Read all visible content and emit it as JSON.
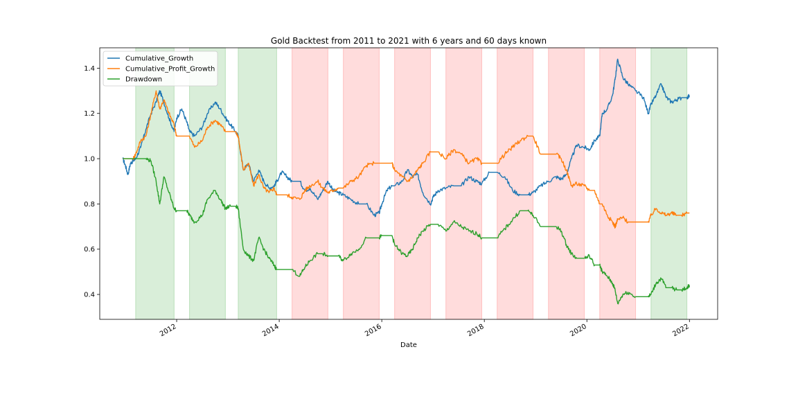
{
  "chart_data": {
    "type": "line",
    "title": "Gold Backtest from 2011 to 2021 with 6 years and 60 days known",
    "xlabel": "Date",
    "ylabel": "",
    "xlim": [
      2010.5,
      2022.55
    ],
    "ylim": [
      0.29,
      1.49
    ],
    "xticks": [
      2012,
      2014,
      2016,
      2018,
      2020,
      2022
    ],
    "xtick_labels": [
      "2012",
      "2014",
      "2016",
      "2018",
      "2020",
      "2022"
    ],
    "yticks": [
      0.4,
      0.6,
      0.8,
      1.0,
      1.2,
      1.4
    ],
    "ytick_labels": [
      "0.4",
      "0.6",
      "0.8",
      "1.0",
      "1.2",
      "1.4"
    ],
    "grid": false,
    "legend_position": "top-left",
    "periods": [
      {
        "start": 2011.2,
        "end": 2011.95,
        "color": "#2ca02c"
      },
      {
        "start": 2012.25,
        "end": 2012.95,
        "color": "#2ca02c"
      },
      {
        "start": 2013.2,
        "end": 2013.95,
        "color": "#2ca02c"
      },
      {
        "start": 2014.25,
        "end": 2014.95,
        "color": "#ff3b3b"
      },
      {
        "start": 2015.25,
        "end": 2015.95,
        "color": "#ff3b3b"
      },
      {
        "start": 2016.25,
        "end": 2016.95,
        "color": "#ff3b3b"
      },
      {
        "start": 2017.25,
        "end": 2017.95,
        "color": "#ff3b3b"
      },
      {
        "start": 2018.25,
        "end": 2018.95,
        "color": "#ff3b3b"
      },
      {
        "start": 2019.25,
        "end": 2019.95,
        "color": "#ff3b3b"
      },
      {
        "start": 2020.25,
        "end": 2020.95,
        "color": "#ff3b3b"
      },
      {
        "start": 2021.25,
        "end": 2021.95,
        "color": "#2ca02c"
      }
    ],
    "series": [
      {
        "name": "Cumulative_Growth",
        "color": "#1f77b4",
        "x": [
          2010.95,
          2011.0,
          2011.05,
          2011.1,
          2011.15,
          2011.2,
          2011.3,
          2011.4,
          2011.5,
          2011.6,
          2011.67,
          2011.75,
          2011.85,
          2011.95,
          2012.0,
          2012.1,
          2012.2,
          2012.25,
          2012.35,
          2012.5,
          2012.6,
          2012.75,
          2012.85,
          2012.95,
          2013.05,
          2013.15,
          2013.2,
          2013.3,
          2013.4,
          2013.5,
          2013.6,
          2013.7,
          2013.8,
          2013.9,
          2013.95,
          2014.05,
          2014.15,
          2014.25,
          2014.4,
          2014.5,
          2014.6,
          2014.75,
          2014.85,
          2014.95,
          2015.05,
          2015.15,
          2015.25,
          2015.4,
          2015.55,
          2015.7,
          2015.85,
          2015.95,
          2016.0,
          2016.1,
          2016.2,
          2016.25,
          2016.4,
          2016.5,
          2016.6,
          2016.7,
          2016.8,
          2016.95,
          2017.0,
          2017.1,
          2017.25,
          2017.4,
          2017.55,
          2017.7,
          2017.85,
          2017.95,
          2018.1,
          2018.25,
          2018.4,
          2018.55,
          2018.7,
          2018.85,
          2018.95,
          2019.1,
          2019.25,
          2019.4,
          2019.5,
          2019.6,
          2019.7,
          2019.8,
          2019.95,
          2020.05,
          2020.15,
          2020.25,
          2020.3,
          2020.4,
          2020.5,
          2020.55,
          2020.6,
          2020.7,
          2020.8,
          2020.95,
          2021.1,
          2021.2,
          2021.25,
          2021.35,
          2021.45,
          2021.55,
          2021.65,
          2021.75,
          2021.85,
          2021.95,
          2022.0
        ],
        "y": [
          1.0,
          0.97,
          0.93,
          0.98,
          0.99,
          1.0,
          1.05,
          1.13,
          1.2,
          1.25,
          1.3,
          1.25,
          1.18,
          1.12,
          1.18,
          1.22,
          1.16,
          1.12,
          1.1,
          1.14,
          1.2,
          1.25,
          1.22,
          1.18,
          1.15,
          1.12,
          1.1,
          0.95,
          0.98,
          0.9,
          0.95,
          0.9,
          0.87,
          0.88,
          0.9,
          0.94,
          0.92,
          0.9,
          0.9,
          0.86,
          0.87,
          0.82,
          0.86,
          0.9,
          0.86,
          0.85,
          0.84,
          0.82,
          0.8,
          0.8,
          0.75,
          0.76,
          0.8,
          0.86,
          0.88,
          0.88,
          0.9,
          0.95,
          0.92,
          0.93,
          0.85,
          0.8,
          0.83,
          0.86,
          0.87,
          0.88,
          0.88,
          0.92,
          0.9,
          0.89,
          0.94,
          0.94,
          0.92,
          0.86,
          0.84,
          0.84,
          0.85,
          0.88,
          0.9,
          0.92,
          0.91,
          0.93,
          1.0,
          1.06,
          1.05,
          1.04,
          1.08,
          1.1,
          1.2,
          1.22,
          1.28,
          1.35,
          1.44,
          1.36,
          1.33,
          1.3,
          1.27,
          1.2,
          1.24,
          1.28,
          1.33,
          1.27,
          1.25,
          1.26,
          1.27,
          1.27,
          1.28
        ]
      },
      {
        "name": "Cumulative_Profit_Growth",
        "color": "#ff7f0e",
        "x": [
          2010.95,
          2011.0,
          2011.05,
          2011.1,
          2011.15,
          2011.2,
          2011.3,
          2011.4,
          2011.5,
          2011.6,
          2011.67,
          2011.75,
          2011.85,
          2011.95,
          2012.0,
          2012.1,
          2012.2,
          2012.25,
          2012.35,
          2012.5,
          2012.6,
          2012.75,
          2012.85,
          2012.95,
          2013.05,
          2013.15,
          2013.2,
          2013.3,
          2013.4,
          2013.5,
          2013.6,
          2013.7,
          2013.8,
          2013.9,
          2013.95,
          2014.05,
          2014.15,
          2014.25,
          2014.4,
          2014.5,
          2014.6,
          2014.75,
          2014.85,
          2014.95,
          2015.05,
          2015.15,
          2015.25,
          2015.4,
          2015.55,
          2015.7,
          2015.85,
          2015.95,
          2016.0,
          2016.1,
          2016.2,
          2016.25,
          2016.4,
          2016.5,
          2016.6,
          2016.7,
          2016.8,
          2016.95,
          2017.0,
          2017.1,
          2017.25,
          2017.4,
          2017.55,
          2017.7,
          2017.85,
          2017.95,
          2018.1,
          2018.25,
          2018.4,
          2018.55,
          2018.7,
          2018.85,
          2018.95,
          2019.1,
          2019.25,
          2019.4,
          2019.5,
          2019.6,
          2019.7,
          2019.8,
          2019.95,
          2020.05,
          2020.15,
          2020.25,
          2020.3,
          2020.4,
          2020.5,
          2020.55,
          2020.6,
          2020.7,
          2020.8,
          2020.95,
          2021.1,
          2021.2,
          2021.25,
          2021.35,
          2021.45,
          2021.55,
          2021.65,
          2021.75,
          2021.85,
          2021.95,
          2022.0
        ],
        "y": [
          1.0,
          1.0,
          1.0,
          1.0,
          1.0,
          1.02,
          1.08,
          1.1,
          1.2,
          1.3,
          1.22,
          1.26,
          1.2,
          1.15,
          1.1,
          1.1,
          1.1,
          1.1,
          1.05,
          1.08,
          1.14,
          1.17,
          1.15,
          1.12,
          1.12,
          1.12,
          1.1,
          0.95,
          0.98,
          0.88,
          0.93,
          0.87,
          0.85,
          0.87,
          0.84,
          0.84,
          0.84,
          0.83,
          0.82,
          0.86,
          0.88,
          0.9,
          0.87,
          0.85,
          0.86,
          0.87,
          0.87,
          0.9,
          0.92,
          0.97,
          0.98,
          0.98,
          0.98,
          0.98,
          0.98,
          0.95,
          0.92,
          0.9,
          0.92,
          0.95,
          0.98,
          1.03,
          1.03,
          1.03,
          1.0,
          1.04,
          1.02,
          0.98,
          1.0,
          0.98,
          0.98,
          0.98,
          1.02,
          1.05,
          1.08,
          1.1,
          1.1,
          1.02,
          1.02,
          1.02,
          1.0,
          0.95,
          0.88,
          0.89,
          0.88,
          0.86,
          0.86,
          0.8,
          0.8,
          0.75,
          0.72,
          0.7,
          0.73,
          0.74,
          0.72,
          0.72,
          0.72,
          0.72,
          0.75,
          0.78,
          0.76,
          0.75,
          0.76,
          0.75,
          0.75,
          0.76,
          0.76
        ]
      },
      {
        "name": "Drawdown",
        "color": "#2ca02c",
        "x": [
          2010.95,
          2011.0,
          2011.05,
          2011.1,
          2011.15,
          2011.2,
          2011.3,
          2011.4,
          2011.5,
          2011.6,
          2011.67,
          2011.75,
          2011.85,
          2011.95,
          2012.0,
          2012.1,
          2012.2,
          2012.25,
          2012.35,
          2012.5,
          2012.6,
          2012.75,
          2012.85,
          2012.95,
          2013.05,
          2013.15,
          2013.2,
          2013.3,
          2013.4,
          2013.5,
          2013.6,
          2013.7,
          2013.8,
          2013.9,
          2013.95,
          2014.05,
          2014.15,
          2014.25,
          2014.4,
          2014.5,
          2014.6,
          2014.75,
          2014.85,
          2014.95,
          2015.05,
          2015.15,
          2015.25,
          2015.4,
          2015.55,
          2015.7,
          2015.85,
          2015.95,
          2016.0,
          2016.1,
          2016.2,
          2016.25,
          2016.4,
          2016.5,
          2016.6,
          2016.7,
          2016.8,
          2016.95,
          2017.0,
          2017.1,
          2017.25,
          2017.4,
          2017.55,
          2017.7,
          2017.85,
          2017.95,
          2018.1,
          2018.25,
          2018.4,
          2018.55,
          2018.7,
          2018.85,
          2018.95,
          2019.1,
          2019.25,
          2019.4,
          2019.5,
          2019.6,
          2019.7,
          2019.8,
          2019.95,
          2020.05,
          2020.15,
          2020.25,
          2020.3,
          2020.4,
          2020.5,
          2020.55,
          2020.6,
          2020.7,
          2020.8,
          2020.95,
          2021.1,
          2021.2,
          2021.25,
          2021.35,
          2021.45,
          2021.55,
          2021.65,
          2021.75,
          2021.85,
          2021.95,
          2022.0
        ],
        "y": [
          1.0,
          1.0,
          1.0,
          1.0,
          1.0,
          1.0,
          1.0,
          1.0,
          0.99,
          0.9,
          0.8,
          0.92,
          0.85,
          0.78,
          0.77,
          0.77,
          0.77,
          0.75,
          0.72,
          0.75,
          0.82,
          0.86,
          0.82,
          0.78,
          0.79,
          0.79,
          0.78,
          0.6,
          0.57,
          0.55,
          0.65,
          0.6,
          0.56,
          0.53,
          0.51,
          0.51,
          0.51,
          0.51,
          0.48,
          0.52,
          0.55,
          0.58,
          0.58,
          0.57,
          0.57,
          0.57,
          0.55,
          0.58,
          0.6,
          0.65,
          0.65,
          0.65,
          0.66,
          0.66,
          0.66,
          0.62,
          0.58,
          0.57,
          0.6,
          0.65,
          0.68,
          0.71,
          0.71,
          0.71,
          0.68,
          0.72,
          0.7,
          0.68,
          0.67,
          0.65,
          0.65,
          0.65,
          0.69,
          0.73,
          0.77,
          0.77,
          0.75,
          0.7,
          0.7,
          0.7,
          0.68,
          0.62,
          0.58,
          0.56,
          0.56,
          0.57,
          0.53,
          0.53,
          0.5,
          0.48,
          0.45,
          0.42,
          0.36,
          0.4,
          0.41,
          0.39,
          0.39,
          0.39,
          0.4,
          0.45,
          0.47,
          0.43,
          0.43,
          0.42,
          0.42,
          0.43,
          0.44
        ]
      }
    ]
  }
}
